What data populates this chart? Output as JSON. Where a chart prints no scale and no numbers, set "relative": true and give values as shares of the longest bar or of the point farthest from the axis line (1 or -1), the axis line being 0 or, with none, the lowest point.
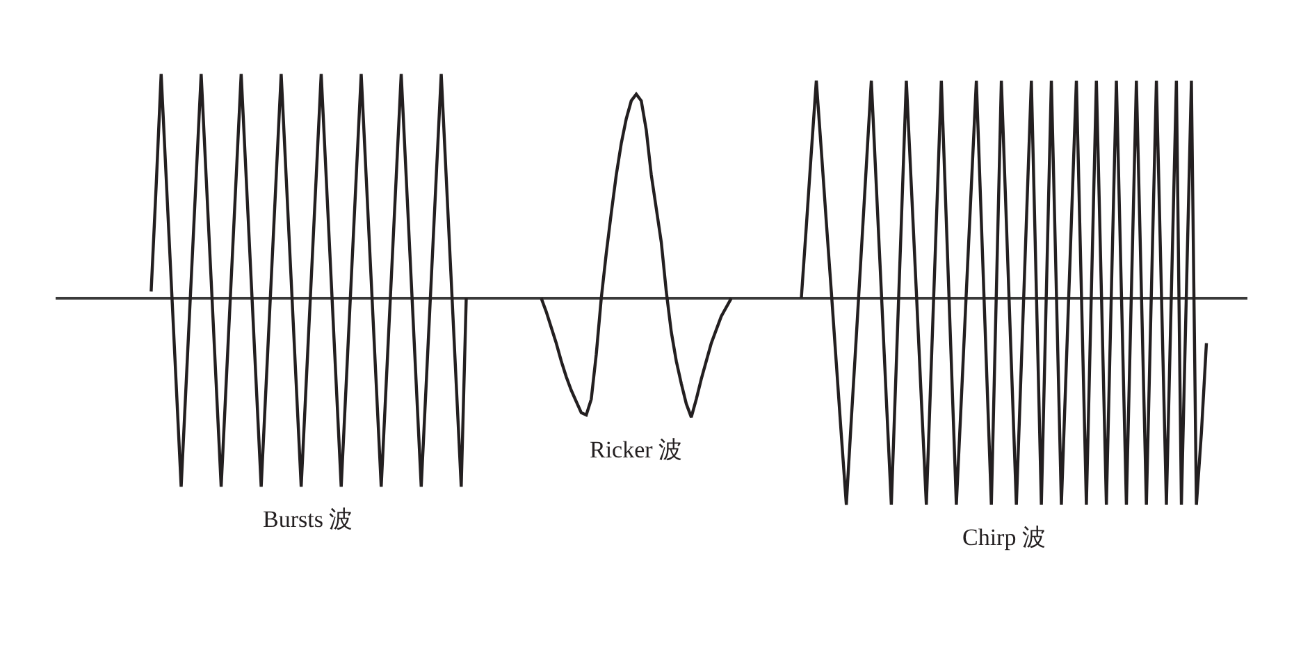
{
  "chart_data": {
    "type": "line",
    "relative": true,
    "legend": false,
    "categories": [
      null,
      null,
      null,
      null,
      null,
      null,
      null,
      null,
      null,
      null,
      null,
      null,
      null,
      null,
      null,
      null,
      null,
      null,
      null,
      null,
      null,
      null,
      null,
      null,
      null,
      null,
      null,
      null,
      null,
      null,
      null,
      null,
      null,
      null,
      null,
      null,
      null,
      null,
      null,
      null,
      null,
      null,
      null,
      null,
      null,
      null,
      null,
      null,
      null,
      null,
      null,
      null,
      null,
      null,
      null,
      null,
      null,
      null,
      null,
      null,
      null,
      null,
      null,
      null,
      null,
      null,
      null,
      null,
      null,
      null,
      null,
      null,
      null,
      null,
      null,
      null,
      null,
      null,
      null,
      null,
      null,
      null,
      null,
      null,
      null,
      null,
      null,
      null,
      null,
      null,
      null,
      null,
      null,
      null,
      null,
      null,
      null,
      null,
      null,
      null,
      null,
      null,
      null,
      null,
      null,
      null,
      null,
      null,
      null,
      null,
      null,
      null,
      null,
      null,
      null,
      null,
      null,
      null,
      null,
      null,
      null,
      null,
      null,
      null,
      null,
      null,
      null,
      null,
      null,
      null,
      null,
      null,
      null,
      null,
      null,
      null,
      null,
      null,
      null,
      null,
      null,
      null,
      null,
      null,
      null,
      null,
      null,
      null,
      null,
      null,
      null,
      null,
      null,
      null,
      null,
      null,
      null,
      null,
      null,
      null,
      null,
      null,
      null,
      null,
      null,
      null,
      null,
      null,
      null,
      null,
      null,
      null,
      null,
      null,
      null,
      null,
      null,
      null,
      null,
      null,
      null,
      null,
      null,
      null,
      null,
      null,
      null,
      null,
      null,
      null,
      null,
      null,
      null,
      null,
      null,
      null,
      null,
      null,
      null,
      null,
      null,
      null,
      null,
      null,
      null,
      null,
      null,
      null,
      null,
      null,
      null,
      null,
      null,
      null,
      null,
      null,
      null,
      null,
      null,
      null,
      null,
      null,
      null,
      null,
      null,
      null,
      null,
      null,
      null,
      null,
      null,
      null,
      null,
      null,
      null,
      null,
      null,
      null
    ],
    "series": [
      {
        "name": "Bursts 波",
        "color": "#231f20",
        "values": [
          null,
          null,
          null,
          null,
          null,
          null,
          null,
          null,
          null,
          null,
          null,
          null,
          null,
          null,
          null,
          null,
          null,
          null,
          0.03,
          0.5,
          1,
          0.54,
          0.08,
          -0.38,
          -0.84,
          -0.38,
          0.08,
          0.54,
          1,
          0.54,
          0.08,
          -0.38,
          -0.84,
          -0.38,
          0.08,
          0.54,
          1,
          0.54,
          0.08,
          -0.38,
          -0.84,
          -0.38,
          0.08,
          0.54,
          1,
          0.54,
          0.08,
          -0.38,
          -0.84,
          -0.38,
          0.08,
          0.54,
          1,
          0.54,
          0.08,
          -0.38,
          -0.84,
          -0.38,
          0.08,
          0.54,
          1,
          0.54,
          0.08,
          -0.38,
          -0.84,
          -0.38,
          0.08,
          0.54,
          1,
          0.54,
          0.08,
          -0.38,
          -0.84,
          -0.38,
          0.08,
          0.54,
          1,
          0.54,
          0.08,
          -0.38,
          -0.84,
          0,
          null,
          null,
          null,
          null,
          null,
          null,
          null,
          null,
          null,
          null,
          null,
          null,
          null,
          null,
          null,
          null,
          null,
          null,
          null,
          null,
          null,
          null,
          null,
          null,
          null,
          null,
          null,
          null,
          null,
          null,
          null,
          null,
          null,
          null,
          null,
          null,
          null,
          null,
          null,
          null,
          null,
          null,
          null,
          null,
          null,
          null,
          null,
          null,
          null,
          null,
          null,
          null,
          null,
          null,
          null,
          null,
          null,
          null,
          null,
          null,
          null,
          null,
          null,
          null,
          null,
          null,
          null,
          null,
          null,
          null,
          null,
          null,
          null,
          null,
          null,
          null,
          null,
          null,
          null,
          null,
          null,
          null,
          null,
          null,
          null,
          null,
          null,
          null,
          null,
          null,
          null,
          null,
          null,
          null,
          null,
          null,
          null,
          null,
          null,
          null,
          null,
          null,
          null,
          null,
          null,
          null,
          null,
          null,
          null,
          null,
          null,
          null,
          null,
          null,
          null,
          null,
          null,
          null,
          null,
          null,
          null,
          null,
          null,
          null,
          null,
          null,
          null,
          null,
          null,
          null,
          null,
          null,
          null,
          null,
          null,
          null,
          null,
          null,
          null,
          null,
          null,
          null,
          null,
          null,
          null,
          null,
          null,
          null,
          null,
          null,
          null,
          null,
          null,
          null,
          null,
          null
        ]
      },
      {
        "name": "Ricker 波",
        "color": "#231f20",
        "values": [
          null,
          null,
          null,
          null,
          null,
          null,
          null,
          null,
          null,
          null,
          null,
          null,
          null,
          null,
          null,
          null,
          null,
          null,
          null,
          null,
          null,
          null,
          null,
          null,
          null,
          null,
          null,
          null,
          null,
          null,
          null,
          null,
          null,
          null,
          null,
          null,
          null,
          null,
          null,
          null,
          null,
          null,
          null,
          null,
          null,
          null,
          null,
          null,
          null,
          null,
          null,
          null,
          null,
          null,
          null,
          null,
          null,
          null,
          null,
          null,
          null,
          null,
          null,
          null,
          null,
          null,
          null,
          null,
          null,
          null,
          null,
          null,
          null,
          null,
          null,
          null,
          null,
          null,
          null,
          null,
          null,
          null,
          null,
          null,
          null,
          null,
          null,
          null,
          null,
          null,
          null,
          null,
          null,
          null,
          null,
          null,
          0,
          -0.06,
          -0.13,
          -0.2,
          -0.28,
          -0.35,
          -0.41,
          -0.46,
          -0.51,
          -0.52,
          -0.45,
          -0.25,
          0,
          0.2,
          0.38,
          0.55,
          0.69,
          0.8,
          0.88,
          0.91,
          0.88,
          0.75,
          0.55,
          0.4,
          0.25,
          0.03,
          -0.15,
          -0.28,
          -0.38,
          -0.47,
          -0.53,
          -0.45,
          -0.36,
          -0.28,
          -0.2,
          -0.14,
          -0.08,
          -0.04,
          0,
          null,
          null,
          null,
          null,
          null,
          null,
          null,
          null,
          null,
          null,
          null,
          null,
          null,
          null,
          null,
          null,
          null,
          null,
          null,
          null,
          null,
          null,
          null,
          null,
          null,
          null,
          null,
          null,
          null,
          null,
          null,
          null,
          null,
          null,
          null,
          null,
          null,
          null,
          null,
          null,
          null,
          null,
          null,
          null,
          null,
          null,
          null,
          null,
          null,
          null,
          null,
          null,
          null,
          null,
          null,
          null,
          null,
          null,
          null,
          null,
          null,
          null,
          null,
          null,
          null,
          null,
          null,
          null,
          null,
          null,
          null,
          null,
          null,
          null,
          null,
          null,
          null,
          null,
          null,
          null,
          null,
          null,
          null,
          null,
          null,
          null,
          null,
          null,
          null,
          null,
          null,
          null,
          null,
          null,
          null,
          null,
          null,
          null,
          null,
          null,
          null,
          null,
          null
        ]
      },
      {
        "name": "Chirp 波",
        "color": "#231f20",
        "values": [
          null,
          null,
          null,
          null,
          null,
          null,
          null,
          null,
          null,
          null,
          null,
          null,
          null,
          null,
          null,
          null,
          null,
          null,
          null,
          null,
          null,
          null,
          null,
          null,
          null,
          null,
          null,
          null,
          null,
          null,
          null,
          null,
          null,
          null,
          null,
          null,
          null,
          null,
          null,
          null,
          null,
          null,
          null,
          null,
          null,
          null,
          null,
          null,
          null,
          null,
          null,
          null,
          null,
          null,
          null,
          null,
          null,
          null,
          null,
          null,
          null,
          null,
          null,
          null,
          null,
          null,
          null,
          null,
          null,
          null,
          null,
          null,
          null,
          null,
          null,
          null,
          null,
          null,
          null,
          null,
          null,
          null,
          null,
          null,
          null,
          null,
          null,
          null,
          null,
          null,
          null,
          null,
          null,
          null,
          null,
          null,
          null,
          null,
          null,
          null,
          null,
          null,
          null,
          null,
          null,
          null,
          null,
          null,
          null,
          null,
          null,
          null,
          null,
          null,
          null,
          null,
          null,
          null,
          null,
          null,
          null,
          null,
          null,
          null,
          null,
          null,
          null,
          null,
          null,
          null,
          null,
          null,
          null,
          null,
          null,
          null,
          null,
          null,
          null,
          null,
          null,
          null,
          null,
          null,
          null,
          null,
          null,
          null,
          0,
          0.32,
          0.65,
          0.97,
          0.66,
          0.34,
          0.03,
          -0.29,
          -0.61,
          -0.92,
          -0.54,
          -0.17,
          0.21,
          0.59,
          0.97,
          0.5,
          0.03,
          -0.45,
          -0.92,
          -0.29,
          0.34,
          0.97,
          0.5,
          0.03,
          -0.45,
          -0.92,
          -0.29,
          0.34,
          0.97,
          0.34,
          -0.29,
          -0.92,
          -0.45,
          0.03,
          0.5,
          0.97,
          0.34,
          -0.29,
          -0.92,
          0.03,
          0.97,
          0.34,
          -0.29,
          -0.92,
          -0.29,
          0.34,
          0.97,
          0.03,
          -0.92,
          0.03,
          0.97,
          0.03,
          -0.92,
          -0.29,
          0.34,
          0.97,
          0.03,
          -0.92,
          0.03,
          0.97,
          0.03,
          -0.92,
          0.03,
          0.97,
          0.03,
          -0.92,
          0.03,
          0.97,
          0.03,
          -0.92,
          0.03,
          0.97,
          0.03,
          -0.92,
          0.03,
          0.97,
          -0.92,
          0.03,
          0.97,
          -0.92,
          -0.6,
          -0.2,
          null,
          null,
          null,
          null,
          null,
          null,
          null,
          null
        ]
      }
    ]
  }
}
